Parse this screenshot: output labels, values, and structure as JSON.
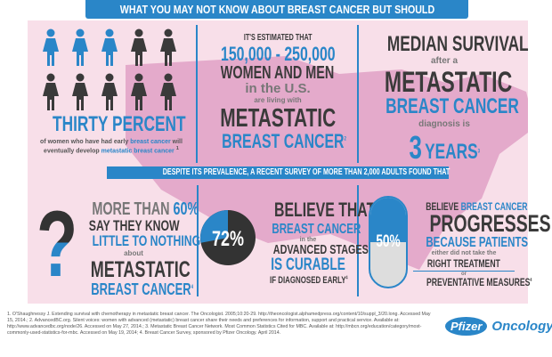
{
  "title": "WHAT YOU MAY NOT KNOW ABOUT BREAST CANCER BUT SHOULD",
  "colors": {
    "blue": "#2a86c8",
    "dark": "#3a3a3a",
    "pink_bg": "#f8dfe9",
    "map_pink": "#e4aacb"
  },
  "stat1": {
    "highlighted_women": 3,
    "total_women": 10,
    "headline": "THIRTY PERCENT",
    "line1a": "of women who have had early ",
    "line1b": "breast cancer",
    "line1c": " will",
    "line2a": "eventually develop ",
    "line2b": "metastatic breast cancer",
    "ref": "1"
  },
  "stat2": {
    "intro": "IT'S ESTIMATED THAT",
    "range": "150,000 - 250,000",
    "who": "WOMEN AND MEN",
    "where": "in the U.S.",
    "living": "are living with",
    "l1": "METASTATIC",
    "l2": "BREAST CANCER",
    "ref": "2"
  },
  "stat3": {
    "l1": "MEDIAN SURVIVAL",
    "l2": "after a",
    "l3": "METASTATIC",
    "l4": "BREAST CANCER",
    "l5": "diagnosis is",
    "num": "3",
    "unit": "YEARS",
    "ref": "3"
  },
  "band": "DESPITE ITS PREVALENCE, A RECENT SURVEY OF MORE THAN 2,000 ADULTS FOUND THAT",
  "survey1": {
    "icon": "question-mark",
    "a": "MORE THAN ",
    "pct": "60%",
    "b": "SAY THEY KNOW",
    "c": "LITTLE TO NOTHING",
    "d": "about",
    "e": "METASTATIC",
    "f": "BREAST CANCER",
    "ref": "4"
  },
  "survey2": {
    "pct_label": "72%",
    "pct_value": 72,
    "a": "BELIEVE THAT",
    "b": "BREAST CANCER",
    "c": "in the",
    "d": "ADVANCED STAGES",
    "e": "IS CURABLE",
    "f": "IF DIAGNOSED EARLY",
    "ref": "4"
  },
  "survey3": {
    "pct_label": "50%",
    "pct_value": 50,
    "a": "BELIEVE ",
    "a2": "BREAST CANCER",
    "b": "PROGRESSES",
    "c": "BECAUSE PATIENTS",
    "d": "either did not take the",
    "e": "RIGHT TREATMENT",
    "f": "or",
    "g": "PREVENTATIVE MEASURES",
    "ref": "4"
  },
  "footnotes": "1. O'Shaughnessy J. Extending survival with chemotherapy in metastatic breast cancer. The Oncologist. 2005;10:20-29. http://theoncologist.alphamedpress.org/content/10/suppl_3/20.long. Accessed May 15, 2014.; 2. AdvancedBC.org. Silent voices: women with advanced (metastatic) breast cancer share their needs and preferences for information, support and practical service. Available at: http://www.advancedbc.org/node/26. Accessed on May 27, 2014.; 3. Metastatic Breast Cancer Network. Most Common Statistics Cited for MBC. Available at: http://mbcn.org/education/category/most-commonly-used-statistics-for-mbc. Accessed on May 19, 2014; 4. Breast Cancer Survey, sponsored by Pfizer Oncology. April 2014.",
  "logo": {
    "brand": "Pfizer",
    "division": "Oncology"
  }
}
